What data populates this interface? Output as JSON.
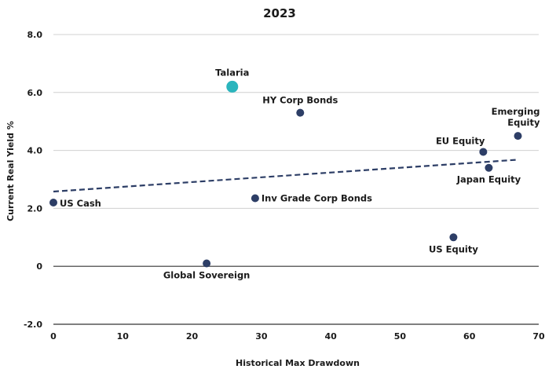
{
  "chart_data": {
    "type": "scatter",
    "title": "2023",
    "xlabel": "Historical Max Drawdown",
    "ylabel": "Current Real Yield %",
    "xlim": [
      0,
      70
    ],
    "ylim": [
      -2,
      8
    ],
    "x_ticks": [
      "0",
      "10",
      "20",
      "30",
      "40",
      "50",
      "60",
      "70"
    ],
    "y_ticks": [
      "-2.0",
      "0",
      "2.0",
      "4.0",
      "6.0",
      "8.0"
    ],
    "grid": true,
    "points": [
      {
        "label": "Talaria",
        "x": 25.8,
        "y": 6.2,
        "color": "#2bb5bd",
        "highlight": true
      },
      {
        "label": "HY Corp Bonds",
        "x": 35.6,
        "y": 5.3,
        "color": "#2d3e66"
      },
      {
        "label": "Emerging Equity",
        "x": 67.0,
        "y": 4.5,
        "color": "#2d3e66"
      },
      {
        "label": "EU Equity",
        "x": 62.0,
        "y": 3.95,
        "color": "#2d3e66"
      },
      {
        "label": "Japan Equity",
        "x": 62.8,
        "y": 3.4,
        "color": "#2d3e66"
      },
      {
        "label": "Inv Grade Corp Bonds",
        "x": 29.1,
        "y": 2.35,
        "color": "#2d3e66"
      },
      {
        "label": "US Cash",
        "x": 0.0,
        "y": 2.2,
        "color": "#2d3e66"
      },
      {
        "label": "US Equity",
        "x": 57.7,
        "y": 1.0,
        "color": "#2d3e66"
      },
      {
        "label": "Global Sovereign",
        "x": 22.1,
        "y": 0.1,
        "color": "#2d3e66"
      }
    ],
    "trendline": {
      "x": [
        0,
        67
      ],
      "y": [
        2.58,
        3.68
      ],
      "style": "dashed",
      "color": "#2d3e66"
    }
  }
}
